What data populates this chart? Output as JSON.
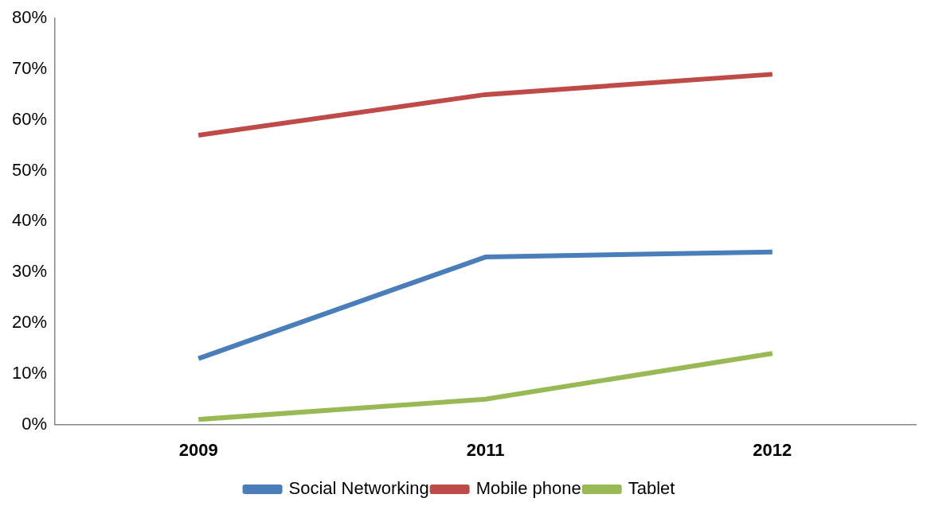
{
  "chart_data": {
    "type": "line",
    "categories": [
      "2009",
      "2011",
      "2012"
    ],
    "series": [
      {
        "name": "Social Networking",
        "color": "#4a7ebb",
        "values": [
          13,
          33,
          34
        ]
      },
      {
        "name": "Mobile phone",
        "color": "#be4b48",
        "values": [
          57,
          65,
          69
        ]
      },
      {
        "name": "Tablet",
        "color": "#98b954",
        "values": [
          1,
          5,
          14
        ]
      }
    ],
    "ylim": [
      0,
      80
    ],
    "yticks": [
      {
        "value": 0,
        "label": "0%"
      },
      {
        "value": 10,
        "label": "10%"
      },
      {
        "value": 20,
        "label": "20%"
      },
      {
        "value": 30,
        "label": "30%"
      },
      {
        "value": 40,
        "label": "40%"
      },
      {
        "value": 50,
        "label": "50%"
      },
      {
        "value": 60,
        "label": "60%"
      },
      {
        "value": 70,
        "label": "70%"
      },
      {
        "value": 80,
        "label": "80%"
      }
    ],
    "grid": false,
    "legend": "bottom",
    "marker": "none",
    "line_style": "solid"
  }
}
